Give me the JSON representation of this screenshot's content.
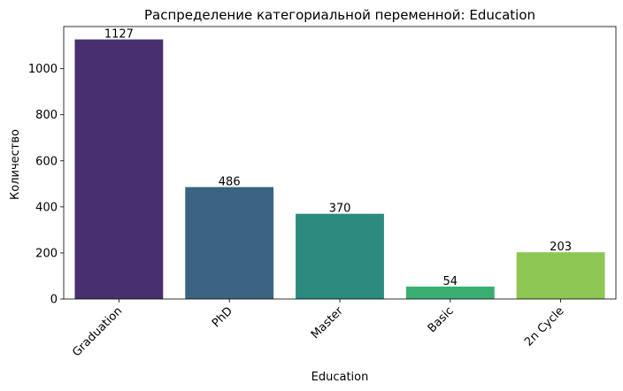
{
  "chart_data": {
    "type": "bar",
    "title": "Распределение категориальной переменной: Education",
    "xlabel": "Education",
    "ylabel": "Количество",
    "categories": [
      "Graduation",
      "PhD",
      "Master",
      "Basic",
      "2n Cycle"
    ],
    "values": [
      1127,
      486,
      370,
      54,
      203
    ],
    "data_labels": [
      "1127",
      "486",
      "370",
      "54",
      "203"
    ],
    "colors": [
      "#482f6f",
      "#3b6482",
      "#2c8a7f",
      "#3aae70",
      "#8ec653"
    ],
    "ylim": [
      0,
      1183
    ],
    "yticks": [
      0,
      200,
      400,
      600,
      800,
      1000
    ],
    "x_tick_rotation_deg": -45,
    "grid": false,
    "legend": "none"
  }
}
